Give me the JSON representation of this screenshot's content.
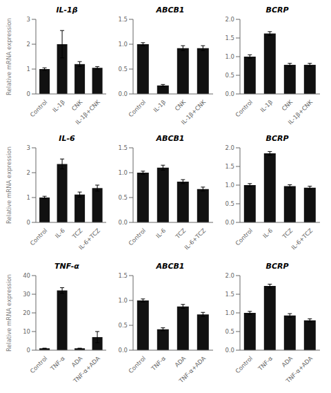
{
  "chart_data": [
    {
      "type": "bar",
      "title": "IL-1β",
      "ylabel": "Relative mRNA expression",
      "categories": [
        "Control",
        "IL-1β",
        "CNK",
        "IL-1β+CNK"
      ],
      "values": [
        1.0,
        2.0,
        1.2,
        1.05
      ],
      "errors": [
        0.05,
        0.55,
        0.1,
        0.05
      ],
      "color": "#111111",
      "ylim": [
        0,
        3
      ],
      "yticks": [
        0,
        1,
        2,
        3
      ],
      "grid": false
    },
    {
      "type": "bar",
      "title": "ABCB1",
      "categories": [
        "Control",
        "IL-1β",
        "CNK",
        "IL-1β+CNK"
      ],
      "values": [
        1.0,
        0.17,
        0.92,
        0.92
      ],
      "errors": [
        0.03,
        0.02,
        0.05,
        0.05
      ],
      "color": "#111111",
      "ylim": [
        0,
        1.5
      ],
      "yticks": [
        {
          "value": 0,
          "label": "0.0"
        },
        0.5,
        {
          "value": 1,
          "label": "1.0"
        },
        1.5
      ],
      "grid": false
    },
    {
      "type": "bar",
      "title": "BCRP",
      "categories": [
        "Control",
        "IL-1β",
        "CNK",
        "IL-1β+CNK"
      ],
      "values": [
        1.0,
        1.62,
        0.78,
        0.78
      ],
      "errors": [
        0.05,
        0.05,
        0.04,
        0.04
      ],
      "color": "#111111",
      "ylim": [
        0,
        2.0
      ],
      "yticks": [
        {
          "value": 0,
          "label": "0.0"
        },
        0.5,
        {
          "value": 1,
          "label": "1.0"
        },
        1.5,
        {
          "value": 2,
          "label": "2.0"
        }
      ],
      "grid": false
    },
    {
      "type": "bar",
      "title": "IL-6",
      "ylabel": "Relative mRNA expression",
      "categories": [
        "Control",
        "IL-6",
        "TCZ",
        "IL-6+TCZ"
      ],
      "values": [
        1.0,
        2.35,
        1.12,
        1.38
      ],
      "errors": [
        0.05,
        0.2,
        0.1,
        0.12
      ],
      "color": "#111111",
      "ylim": [
        0,
        3
      ],
      "yticks": [
        0,
        1,
        2,
        3
      ],
      "grid": false
    },
    {
      "type": "bar",
      "title": "ABCB1",
      "categories": [
        "Control",
        "IL-6",
        "TCZ",
        "IL-6+TCZ"
      ],
      "values": [
        1.0,
        1.1,
        0.82,
        0.67
      ],
      "errors": [
        0.03,
        0.05,
        0.04,
        0.04
      ],
      "color": "#111111",
      "ylim": [
        0,
        1.5
      ],
      "yticks": [
        {
          "value": 0,
          "label": "0.0"
        },
        0.5,
        {
          "value": 1,
          "label": "1.0"
        },
        1.5
      ],
      "grid": false
    },
    {
      "type": "bar",
      "title": "BCRP",
      "categories": [
        "Control",
        "IL-6",
        "TCZ",
        "IL-6+TCZ"
      ],
      "values": [
        1.0,
        1.85,
        0.97,
        0.93
      ],
      "errors": [
        0.04,
        0.05,
        0.04,
        0.04
      ],
      "color": "#111111",
      "ylim": [
        0,
        2.0
      ],
      "yticks": [
        {
          "value": 0,
          "label": "0.0"
        },
        0.5,
        {
          "value": 1,
          "label": "1.0"
        },
        1.5,
        {
          "value": 2,
          "label": "2.0"
        }
      ],
      "grid": false
    },
    {
      "type": "bar",
      "title": "TNF-α",
      "ylabel": "Relative mRNA expression",
      "categories": [
        "Control",
        "TNF-α",
        "ADA",
        "TNF-α+ADA"
      ],
      "values": [
        1.0,
        32.0,
        1.0,
        7.0
      ],
      "errors": [
        0.08,
        1.5,
        0.05,
        3.0
      ],
      "color": "#111111",
      "ylim": [
        0,
        40
      ],
      "yticks": [
        0,
        10,
        20,
        30,
        40
      ],
      "grid": false
    },
    {
      "type": "bar",
      "title": "ABCB1",
      "categories": [
        "Control",
        "TNF-α",
        "ADA",
        "TNF-α+ADA"
      ],
      "values": [
        1.0,
        0.42,
        0.88,
        0.72
      ],
      "errors": [
        0.03,
        0.03,
        0.04,
        0.04
      ],
      "color": "#111111",
      "ylim": [
        0,
        1.5
      ],
      "yticks": [
        {
          "value": 0,
          "label": "0.0"
        },
        0.5,
        {
          "value": 1,
          "label": "1.0"
        },
        1.5
      ],
      "grid": false
    },
    {
      "type": "bar",
      "title": "BCRP",
      "categories": [
        "Control",
        "TNF-α",
        "ADA",
        "TNF-α+ADA"
      ],
      "values": [
        1.0,
        1.72,
        0.93,
        0.8
      ],
      "errors": [
        0.04,
        0.05,
        0.05,
        0.04
      ],
      "color": "#111111",
      "ylim": [
        0,
        2.0
      ],
      "yticks": [
        {
          "value": 0,
          "label": "0.0"
        },
        0.5,
        {
          "value": 1,
          "label": "1.0"
        },
        1.5,
        {
          "value": 2,
          "label": "2.0"
        }
      ],
      "grid": false
    }
  ]
}
